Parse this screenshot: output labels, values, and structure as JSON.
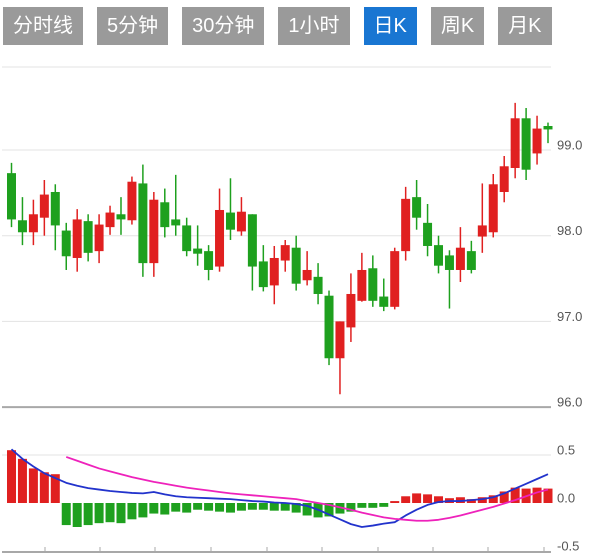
{
  "tabs": {
    "items": [
      {
        "label": "分时线",
        "active": false
      },
      {
        "label": "5分钟",
        "active": false
      },
      {
        "label": "30分钟",
        "active": false
      },
      {
        "label": "1小时",
        "active": false
      },
      {
        "label": "日K",
        "active": true
      },
      {
        "label": "周K",
        "active": false
      },
      {
        "label": "月K",
        "active": false
      }
    ]
  },
  "colors": {
    "up": "#1ea01e",
    "down": "#e02020",
    "dif_line": "#2233cc",
    "dea_line": "#ee22bb",
    "active_tab": "#1976d2",
    "tab_bg": "#9a9a9a",
    "grid": "#e3e3e3",
    "axis": "#a8a8a8",
    "label": "#555555"
  },
  "chart_data": [
    {
      "type": "candlestick",
      "title": "",
      "xlabel": "",
      "ylabel": "",
      "legend": "none",
      "grid": true,
      "ylim": [
        95.9,
        100.0
      ],
      "yticks": [
        99.0,
        98.0,
        97.0,
        96.0
      ],
      "ytick_labels": [
        "99.0",
        "98.0",
        "97.0",
        "96.0"
      ],
      "candles_format": "[open, high, low, close]",
      "candles": [
        [
          98.19,
          98.85,
          98.1,
          98.73
        ],
        [
          98.04,
          98.45,
          97.89,
          98.18
        ],
        [
          98.25,
          98.42,
          97.89,
          98.04
        ],
        [
          98.48,
          98.65,
          98.0,
          98.21
        ],
        [
          98.12,
          98.6,
          97.83,
          98.51
        ],
        [
          97.76,
          98.15,
          97.6,
          98.06
        ],
        [
          98.19,
          98.31,
          97.58,
          97.74
        ],
        [
          97.8,
          98.25,
          97.7,
          98.17
        ],
        [
          98.13,
          98.25,
          97.68,
          97.82
        ],
        [
          98.27,
          98.35,
          98.01,
          98.1
        ],
        [
          98.19,
          98.45,
          98.01,
          98.25
        ],
        [
          98.63,
          98.69,
          98.13,
          98.18
        ],
        [
          97.68,
          98.83,
          97.52,
          98.61
        ],
        [
          98.42,
          98.51,
          97.52,
          97.68
        ],
        [
          98.1,
          98.55,
          97.98,
          98.39
        ],
        [
          98.12,
          98.71,
          98.0,
          98.19
        ],
        [
          97.82,
          98.21,
          97.76,
          98.12
        ],
        [
          97.79,
          98.12,
          97.65,
          97.85
        ],
        [
          97.6,
          97.89,
          97.48,
          97.82
        ],
        [
          98.3,
          98.55,
          97.58,
          97.64
        ],
        [
          98.07,
          98.67,
          97.95,
          98.27
        ],
        [
          98.28,
          98.45,
          98.0,
          98.05
        ],
        [
          97.64,
          98.25,
          97.36,
          98.25
        ],
        [
          97.4,
          97.89,
          97.35,
          97.7
        ],
        [
          97.74,
          97.88,
          97.2,
          97.42
        ],
        [
          97.89,
          97.95,
          97.58,
          97.71
        ],
        [
          97.44,
          98.0,
          97.36,
          97.86
        ],
        [
          97.6,
          97.82,
          97.42,
          97.48
        ],
        [
          97.32,
          97.68,
          97.2,
          97.52
        ],
        [
          96.57,
          97.36,
          96.49,
          97.3
        ],
        [
          97.0,
          97.0,
          96.15,
          96.57
        ],
        [
          97.32,
          97.56,
          96.76,
          96.93
        ],
        [
          97.6,
          97.8,
          97.23,
          97.24
        ],
        [
          97.24,
          97.77,
          97.17,
          97.62
        ],
        [
          97.17,
          97.5,
          97.12,
          97.29
        ],
        [
          97.82,
          97.86,
          97.14,
          97.17
        ],
        [
          98.43,
          98.57,
          97.71,
          97.82
        ],
        [
          98.21,
          98.65,
          98.07,
          98.45
        ],
        [
          97.88,
          98.37,
          97.76,
          98.15
        ],
        [
          97.65,
          98.0,
          97.56,
          97.89
        ],
        [
          97.6,
          97.83,
          97.15,
          97.77
        ],
        [
          97.86,
          98.1,
          97.46,
          97.6
        ],
        [
          97.6,
          97.94,
          97.56,
          97.82
        ],
        [
          98.12,
          98.61,
          97.8,
          97.99
        ],
        [
          98.6,
          98.72,
          97.98,
          98.04
        ],
        [
          98.81,
          98.93,
          98.39,
          98.51
        ],
        [
          99.37,
          99.55,
          98.67,
          98.79
        ],
        [
          98.77,
          99.49,
          98.65,
          99.37
        ],
        [
          99.25,
          99.4,
          98.83,
          98.96
        ],
        [
          99.24,
          99.32,
          99.08,
          99.28
        ]
      ]
    },
    {
      "type": "macd",
      "title": "",
      "legend": "none",
      "grid": true,
      "ylim": [
        -0.55,
        0.55
      ],
      "yticks": [
        0.5,
        0.0,
        -0.5
      ],
      "ytick_labels": [
        "0.5",
        "0.0",
        "-0.5"
      ],
      "hist": [
        0.55,
        0.46,
        0.36,
        0.32,
        0.3,
        -0.23,
        -0.25,
        -0.23,
        -0.21,
        -0.2,
        -0.21,
        -0.17,
        -0.15,
        -0.11,
        -0.12,
        -0.09,
        -0.1,
        -0.07,
        -0.08,
        -0.09,
        -0.1,
        -0.08,
        -0.07,
        -0.07,
        -0.08,
        -0.08,
        -0.1,
        -0.13,
        -0.15,
        -0.14,
        -0.11,
        -0.09,
        -0.05,
        -0.05,
        -0.04,
        0.02,
        0.07,
        0.1,
        0.09,
        0.07,
        0.05,
        0.06,
        0.04,
        0.06,
        0.08,
        0.12,
        0.16,
        0.15,
        0.16,
        0.15
      ],
      "dif": [
        0.56,
        0.46,
        0.38,
        0.31,
        0.26,
        0.21,
        0.18,
        0.155,
        0.14,
        0.125,
        0.115,
        0.105,
        0.1,
        0.115,
        0.09,
        0.07,
        0.06,
        0.055,
        0.05,
        0.045,
        0.04,
        0.03,
        0.02,
        0.015,
        0.005,
        0.0,
        -0.01,
        -0.03,
        -0.07,
        -0.12,
        -0.17,
        -0.22,
        -0.25,
        -0.235,
        -0.215,
        -0.2,
        -0.13,
        -0.07,
        -0.02,
        0.01,
        0.02,
        0.02,
        0.03,
        0.04,
        0.06,
        0.1,
        0.15,
        0.2,
        0.25,
        0.3
      ],
      "dea": [
        null,
        null,
        null,
        null,
        null,
        0.48,
        0.44,
        0.4,
        0.36,
        0.33,
        0.3,
        0.27,
        0.245,
        0.22,
        0.2,
        0.18,
        0.16,
        0.145,
        0.13,
        0.115,
        0.1,
        0.09,
        0.08,
        0.07,
        0.06,
        0.05,
        0.04,
        0.02,
        0.0,
        -0.02,
        -0.045,
        -0.07,
        -0.1,
        -0.125,
        -0.15,
        -0.165,
        -0.175,
        -0.185,
        -0.185,
        -0.175,
        -0.155,
        -0.13,
        -0.1,
        -0.07,
        -0.04,
        -0.005,
        0.03,
        0.07,
        0.11,
        0.14
      ]
    }
  ]
}
